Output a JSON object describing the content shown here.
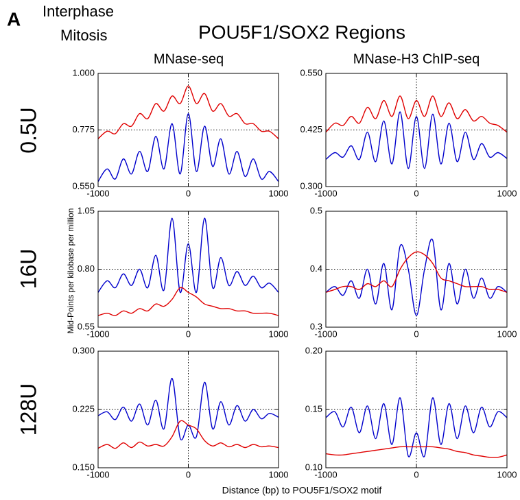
{
  "figure": {
    "panel": "A",
    "title": "POU5F1/SOX2 Regions",
    "columns": [
      "MNase-seq",
      "MNase-H3 ChIP-seq"
    ],
    "rows": [
      "0.5U",
      "16U",
      "128U"
    ],
    "ylabel": "Mid-Points per kilobase per million",
    "xlabel": "Distance (bp) to POU5F1/SOX2 motif"
  },
  "chart_data": [
    {
      "type": "line",
      "x": [
        -1000,
        -900,
        -810,
        -720,
        -630,
        -540,
        -450,
        -360,
        -270,
        -180,
        -90,
        0,
        90,
        180,
        270,
        360,
        450,
        540,
        630,
        720,
        810,
        900,
        1000
      ],
      "xlim": [
        -1000,
        1000
      ],
      "xticks": [
        -1000,
        0,
        1000
      ],
      "ylim": [
        0.55,
        1
      ],
      "yticks": [
        {
          "value": 0.55,
          "label": "0.550"
        },
        0.775,
        {
          "value": 1,
          "label": "1.000"
        }
      ],
      "series": [
        {
          "name": "Interphase",
          "color": "#0000cc",
          "values": [
            0.57,
            0.62,
            0.58,
            0.66,
            0.6,
            0.69,
            0.61,
            0.75,
            0.62,
            0.8,
            0.6,
            0.84,
            0.61,
            0.79,
            0.63,
            0.74,
            0.6,
            0.69,
            0.59,
            0.66,
            0.58,
            0.61,
            0.57
          ]
        },
        {
          "name": "Mitosis",
          "color": "#e00000",
          "values": [
            0.74,
            0.77,
            0.76,
            0.8,
            0.79,
            0.84,
            0.82,
            0.88,
            0.85,
            0.91,
            0.88,
            0.95,
            0.88,
            0.92,
            0.85,
            0.88,
            0.83,
            0.84,
            0.8,
            0.8,
            0.77,
            0.77,
            0.74
          ]
        }
      ]
    },
    {
      "type": "line",
      "x": [
        -1000,
        -900,
        -810,
        -720,
        -630,
        -540,
        -450,
        -360,
        -270,
        -180,
        -90,
        0,
        90,
        180,
        270,
        360,
        450,
        540,
        630,
        720,
        810,
        900,
        1000
      ],
      "xlim": [
        -1000,
        1000
      ],
      "xticks": [
        -1000,
        0,
        1000
      ],
      "ylim": [
        0.3,
        0.55
      ],
      "yticks": [
        {
          "value": 0.3,
          "label": "0.300"
        },
        0.425,
        {
          "value": 0.55,
          "label": "0.550"
        }
      ],
      "series": [
        {
          "color": "#0000cc",
          "values": [
            0.36,
            0.375,
            0.365,
            0.39,
            0.36,
            0.42,
            0.355,
            0.445,
            0.35,
            0.465,
            0.34,
            0.455,
            0.34,
            0.46,
            0.35,
            0.44,
            0.355,
            0.42,
            0.36,
            0.395,
            0.365,
            0.375,
            0.362
          ]
        },
        {
          "color": "#e00000",
          "values": [
            0.42,
            0.44,
            0.435,
            0.455,
            0.44,
            0.475,
            0.45,
            0.49,
            0.455,
            0.5,
            0.45,
            0.49,
            0.455,
            0.5,
            0.455,
            0.485,
            0.45,
            0.47,
            0.445,
            0.455,
            0.44,
            0.435,
            0.42
          ]
        }
      ]
    },
    {
      "type": "line",
      "x": [
        -1000,
        -900,
        -810,
        -720,
        -630,
        -540,
        -450,
        -360,
        -270,
        -180,
        -90,
        0,
        90,
        180,
        270,
        360,
        450,
        540,
        630,
        720,
        810,
        900,
        1000
      ],
      "xlim": [
        -1000,
        1000
      ],
      "xticks": [
        -1000,
        0,
        1000
      ],
      "ylim": [
        0.55,
        1.05
      ],
      "yticks": [
        0.55,
        {
          "value": 0.8,
          "label": "0.80"
        },
        1.05
      ],
      "series": [
        {
          "color": "#0000cc",
          "values": [
            0.7,
            0.75,
            0.72,
            0.78,
            0.73,
            0.8,
            0.72,
            0.86,
            0.71,
            1.02,
            0.7,
            0.91,
            0.7,
            1.02,
            0.72,
            0.85,
            0.73,
            0.79,
            0.73,
            0.77,
            0.72,
            0.74,
            0.7
          ]
        },
        {
          "color": "#e00000",
          "values": [
            0.6,
            0.61,
            0.6,
            0.62,
            0.61,
            0.63,
            0.62,
            0.65,
            0.64,
            0.67,
            0.72,
            0.7,
            0.68,
            0.65,
            0.64,
            0.63,
            0.63,
            0.62,
            0.62,
            0.61,
            0.61,
            0.61,
            0.6
          ]
        }
      ]
    },
    {
      "type": "line",
      "x": [
        -1000,
        -900,
        -810,
        -720,
        -630,
        -540,
        -450,
        -360,
        -270,
        -180,
        -90,
        0,
        90,
        180,
        270,
        360,
        450,
        540,
        630,
        720,
        810,
        900,
        1000
      ],
      "xlim": [
        -1000,
        1000
      ],
      "xticks": [
        -1000,
        0,
        1000
      ],
      "ylim": [
        0.3,
        0.5
      ],
      "yticks": [
        0.3,
        0.4,
        0.5
      ],
      "series": [
        {
          "color": "#0000cc",
          "values": [
            0.36,
            0.37,
            0.355,
            0.38,
            0.35,
            0.4,
            0.34,
            0.41,
            0.33,
            0.44,
            0.4,
            0.32,
            0.4,
            0.45,
            0.33,
            0.41,
            0.34,
            0.4,
            0.35,
            0.385,
            0.35,
            0.37,
            0.36
          ]
        },
        {
          "color": "#e00000",
          "values": [
            0.36,
            0.365,
            0.37,
            0.37,
            0.365,
            0.375,
            0.37,
            0.38,
            0.37,
            0.4,
            0.42,
            0.43,
            0.425,
            0.41,
            0.385,
            0.38,
            0.375,
            0.37,
            0.37,
            0.37,
            0.365,
            0.365,
            0.36
          ]
        }
      ]
    },
    {
      "type": "line",
      "x": [
        -1000,
        -900,
        -810,
        -720,
        -630,
        -540,
        -450,
        -360,
        -270,
        -180,
        -90,
        0,
        90,
        180,
        270,
        360,
        450,
        540,
        630,
        720,
        810,
        900,
        1000
      ],
      "xlim": [
        -1000,
        1000
      ],
      "xticks": [
        -1000,
        0,
        1000
      ],
      "ylim": [
        0.15,
        0.3
      ],
      "yticks": [
        {
          "value": 0.15,
          "label": "0.150"
        },
        0.225,
        {
          "value": 0.3,
          "label": "0.300"
        }
      ],
      "series": [
        {
          "color": "#0000cc",
          "values": [
            0.217,
            0.222,
            0.212,
            0.228,
            0.21,
            0.232,
            0.205,
            0.237,
            0.2,
            0.265,
            0.188,
            0.205,
            0.19,
            0.26,
            0.2,
            0.235,
            0.205,
            0.23,
            0.21,
            0.225,
            0.213,
            0.22,
            0.215
          ]
        },
        {
          "color": "#e00000",
          "values": [
            0.175,
            0.18,
            0.175,
            0.182,
            0.176,
            0.183,
            0.178,
            0.18,
            0.178,
            0.19,
            0.21,
            0.205,
            0.2,
            0.185,
            0.178,
            0.182,
            0.177,
            0.18,
            0.176,
            0.18,
            0.177,
            0.178,
            0.176
          ]
        }
      ]
    },
    {
      "type": "line",
      "x": [
        -1000,
        -900,
        -810,
        -720,
        -630,
        -540,
        -450,
        -360,
        -270,
        -180,
        -90,
        0,
        90,
        180,
        270,
        360,
        450,
        540,
        630,
        720,
        810,
        900,
        1000
      ],
      "xlim": [
        -1000,
        1000
      ],
      "xticks": [
        -1000,
        0,
        1000
      ],
      "ylim": [
        0.1,
        0.2
      ],
      "yticks": [
        {
          "value": 0.1,
          "label": "0.10"
        },
        0.15,
        {
          "value": 0.2,
          "label": "0.20"
        }
      ],
      "series": [
        {
          "color": "#0000cc",
          "values": [
            0.143,
            0.148,
            0.135,
            0.152,
            0.13,
            0.153,
            0.125,
            0.155,
            0.12,
            0.16,
            0.11,
            0.13,
            0.11,
            0.16,
            0.12,
            0.155,
            0.125,
            0.153,
            0.13,
            0.152,
            0.135,
            0.148,
            0.143
          ]
        },
        {
          "color": "#e00000",
          "values": [
            0.112,
            0.111,
            0.111,
            0.112,
            0.113,
            0.114,
            0.115,
            0.116,
            0.117,
            0.118,
            0.118,
            0.118,
            0.118,
            0.118,
            0.117,
            0.116,
            0.114,
            0.113,
            0.111,
            0.11,
            0.109,
            0.109,
            0.111
          ]
        }
      ]
    }
  ]
}
